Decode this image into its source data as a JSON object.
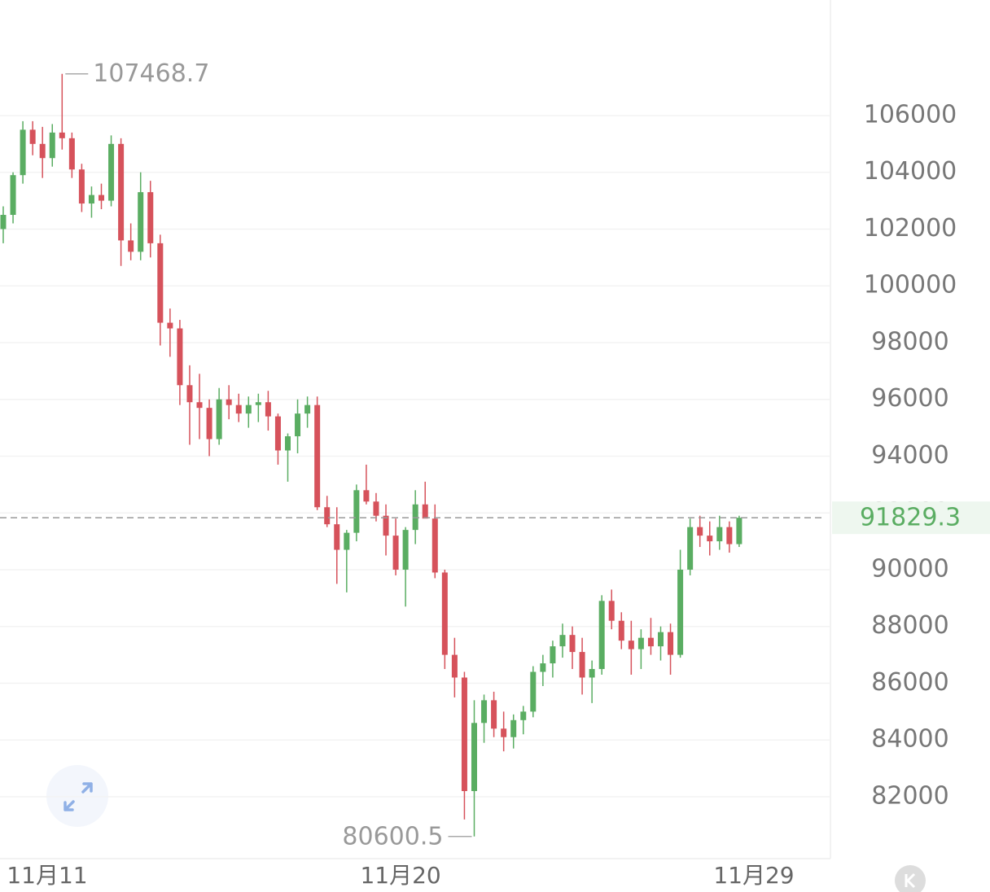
{
  "chart_data": {
    "type": "candlestick",
    "open": [
      102000,
      102500,
      103900,
      105500,
      105000,
      104500,
      105400,
      105200,
      104100,
      102900,
      103200,
      103000,
      105000,
      101600,
      101200,
      103300,
      101500,
      98700,
      98500,
      96500,
      95900,
      95700,
      94600,
      96000,
      95800,
      95500,
      95800,
      95900,
      95400,
      94200,
      94700,
      95500,
      95800,
      92200,
      91600,
      90700,
      91300,
      92800,
      92400,
      91900,
      91200,
      90000,
      91400,
      92300,
      91800,
      89900,
      87000,
      86200,
      82200,
      84600,
      85400,
      84400,
      84100,
      84700,
      85000,
      86400,
      86700,
      87300,
      87700,
      87100,
      86200,
      86500,
      88900,
      88200,
      87500,
      87200,
      87600,
      87300,
      87800,
      87000,
      90000,
      91500,
      91200,
      91000,
      91500,
      90900
    ],
    "high": [
      102800,
      104000,
      105800,
      105800,
      105600,
      105700,
      107468.7,
      105400,
      104300,
      103500,
      103600,
      105300,
      105200,
      102200,
      104000,
      103700,
      101800,
      99200,
      98800,
      97200,
      96900,
      96000,
      96400,
      96500,
      96200,
      96100,
      96200,
      96300,
      95500,
      94800,
      96000,
      96100,
      96100,
      92600,
      92200,
      91400,
      93000,
      93700,
      92700,
      92300,
      91800,
      91500,
      92800,
      93100,
      92300,
      90000,
      87600,
      86400,
      85400,
      85600,
      85700,
      85000,
      84900,
      85200,
      86600,
      87000,
      87500,
      88100,
      88000,
      87600,
      86800,
      89100,
      89300,
      88500,
      88200,
      87900,
      88300,
      88000,
      88100,
      90700,
      91800,
      91900,
      91700,
      91900,
      91700,
      91900
    ],
    "low": [
      101500,
      102200,
      103600,
      104600,
      103800,
      104200,
      104800,
      103800,
      102600,
      102400,
      102700,
      102800,
      100700,
      100900,
      100900,
      101000,
      97900,
      97500,
      95800,
      94400,
      94600,
      94000,
      94400,
      95300,
      95200,
      95000,
      95200,
      94900,
      93700,
      93100,
      94100,
      95000,
      92100,
      91500,
      89500,
      89200,
      91000,
      92300,
      91700,
      90500,
      89800,
      88700,
      90900,
      91900,
      89700,
      86500,
      85500,
      81200,
      80600.5,
      83900,
      84100,
      83600,
      83700,
      84200,
      84800,
      85900,
      86200,
      86900,
      86500,
      85600,
      85300,
      86300,
      87900,
      87200,
      86300,
      86500,
      87000,
      86800,
      86300,
      86900,
      89800,
      90800,
      90500,
      90700,
      90600,
      90800
    ],
    "close": [
      102500,
      103900,
      105500,
      105000,
      104500,
      105400,
      105200,
      104100,
      102900,
      103200,
      103000,
      105000,
      101600,
      101200,
      103300,
      101500,
      98700,
      98500,
      96500,
      95900,
      95700,
      94600,
      96000,
      95800,
      95500,
      95800,
      95900,
      95400,
      94200,
      94700,
      95500,
      95800,
      92200,
      91600,
      90700,
      91300,
      92800,
      92400,
      91900,
      91200,
      90000,
      91400,
      92300,
      91800,
      89900,
      87000,
      86200,
      82200,
      84600,
      85400,
      84400,
      84100,
      84700,
      85000,
      86400,
      86700,
      87300,
      87700,
      87100,
      86200,
      86500,
      88900,
      88200,
      87500,
      87200,
      87600,
      87300,
      87800,
      87000,
      90000,
      91500,
      91200,
      91000,
      91500,
      90900,
      91829.3
    ],
    "up_color": "#5aad62",
    "down_color": "#d6525b",
    "ylim": [
      79820,
      110070
    ],
    "yticks": [
      82000,
      84000,
      86000,
      88000,
      90000,
      92000,
      94000,
      96000,
      98000,
      100000,
      102000,
      104000,
      106000
    ],
    "xlim": [
      -0.33,
      84.3
    ],
    "xticks": [
      {
        "value": 4.48,
        "label": "11月11"
      },
      {
        "value": 40.5,
        "label": "11月20"
      },
      {
        "value": 76.5,
        "label": "11月29"
      }
    ],
    "grid": true
  }
}
